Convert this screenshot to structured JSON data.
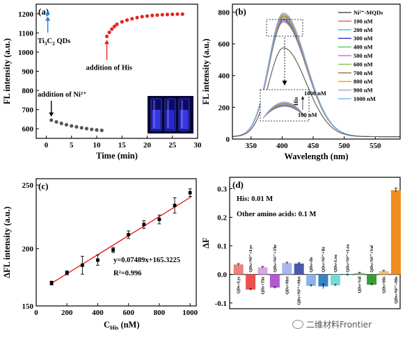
{
  "watermark": "二维材料Frontier",
  "colors": {
    "a_gray": "#555555",
    "a_red": "#e8241e",
    "a_blue": "#1c7fe0",
    "b_main": "#666666",
    "c_red": "#e8241e",
    "c_point": "#000000"
  },
  "chart_data": [
    {
      "id": "a",
      "type": "scatter",
      "panel_label": "(a)",
      "xlabel": "Time (min)",
      "ylabel": "FL intensity (a.u.)",
      "xlim": [
        -2,
        30
      ],
      "ylim": [
        550,
        1250
      ],
      "xticks": [
        0,
        5,
        10,
        15,
        20,
        25,
        30
      ],
      "yticks": [
        600,
        700,
        800,
        900,
        1000,
        1100,
        1200
      ],
      "series": [
        {
          "color": "#1c7fe0",
          "points": [
            [
              0.3,
              1200
            ]
          ]
        },
        {
          "color": "#555555",
          "points": [
            [
              1,
              645
            ],
            [
              2,
              636
            ],
            [
              3,
              628
            ],
            [
              4,
              621
            ],
            [
              5,
              615
            ],
            [
              6,
              610
            ],
            [
              7,
              605
            ],
            [
              8,
              601
            ],
            [
              9,
              597
            ],
            [
              10,
              594
            ],
            [
              11,
              592
            ]
          ]
        },
        {
          "color": "#e8241e",
          "points": [
            [
              12,
              1082
            ],
            [
              12.5,
              1103
            ],
            [
              13,
              1120
            ],
            [
              13.5,
              1134
            ],
            [
              14,
              1145
            ],
            [
              15,
              1158
            ],
            [
              16,
              1167
            ],
            [
              17,
              1174
            ],
            [
              18,
              1180
            ],
            [
              19,
              1185
            ],
            [
              20,
              1188
            ],
            [
              21,
              1191
            ],
            [
              22,
              1193
            ],
            [
              23,
              1195
            ],
            [
              24,
              1196
            ],
            [
              25,
              1197
            ],
            [
              26,
              1198
            ],
            [
              27,
              1198
            ]
          ]
        }
      ],
      "annotations": {
        "qds": "Ti3C2 QDs",
        "his": "addition of His",
        "ni": "addition of Ni²⁺"
      }
    },
    {
      "id": "b",
      "type": "line",
      "panel_label": "(b)",
      "xlabel": "Wavelength (nm)",
      "ylabel": "FL intensity (a.u.)",
      "xlim": [
        320,
        590
      ],
      "ylim": [
        0,
        850
      ],
      "xticks": [
        350,
        400,
        450,
        500,
        550
      ],
      "yticks": [
        0,
        200,
        400,
        600,
        800
      ],
      "peak_wavelength": 402,
      "series": [
        {
          "name": "Ni²⁺-MQDs",
          "color": "#555555",
          "peak": 575
        },
        {
          "name": "100 nM",
          "color": "#ff4a4a",
          "peak": 738
        },
        {
          "name": "200 nM",
          "color": "#2cc3e6",
          "peak": 745
        },
        {
          "name": "300 nM",
          "color": "#2e2ecf",
          "peak": 752
        },
        {
          "name": "400 nM",
          "color": "#5ac65a",
          "peak": 758
        },
        {
          "name": "500 nM",
          "color": "#d66fe2",
          "peak": 764
        },
        {
          "name": "600 nM",
          "color": "#8bc34a",
          "peak": 770
        },
        {
          "name": "700 nM",
          "color": "#a06a4a",
          "peak": 776
        },
        {
          "name": "800 nM",
          "color": "#ff9800",
          "peak": 782
        },
        {
          "name": "900 nM",
          "color": "#9aa6b8",
          "peak": 788
        },
        {
          "name": "1000 nM",
          "color": "#7fb2ff",
          "peak": 795
        }
      ],
      "inset_labels": {
        "his": "His",
        "top": "1000 nM",
        "bottom": "100 nM"
      }
    },
    {
      "id": "c",
      "type": "scatter",
      "panel_label": "(c)",
      "xlabel": "C_His (nM)",
      "xlabel_main": "C",
      "xlabel_sub": "His",
      "xlabel_unit": " (nM)",
      "ylabel": "ΔFL intensity (a.u.)",
      "xlim": [
        0,
        1040
      ],
      "ylim": [
        155,
        255
      ],
      "xticks": [
        0,
        200,
        400,
        600,
        800,
        1000
      ],
      "yticks": [
        150,
        200,
        250
      ],
      "points": [
        {
          "x": 100,
          "y": 173,
          "err": 1.5
        },
        {
          "x": 200,
          "y": 181,
          "err": 1.5
        },
        {
          "x": 300,
          "y": 187,
          "err": 7
        },
        {
          "x": 400,
          "y": 191,
          "err": 4
        },
        {
          "x": 500,
          "y": 199,
          "err": 2
        },
        {
          "x": 600,
          "y": 211,
          "err": 3
        },
        {
          "x": 700,
          "y": 219,
          "err": 3
        },
        {
          "x": 800,
          "y": 223,
          "err": 3.5
        },
        {
          "x": 900,
          "y": 234,
          "err": 6
        },
        {
          "x": 1000,
          "y": 244,
          "err": 3
        }
      ],
      "fit": {
        "slope": 0.07489,
        "intercept": 165.3225
      },
      "equation": "y=0.07489x+165.3225",
      "r2": "R²=0.996"
    },
    {
      "id": "d",
      "type": "bar",
      "panel_label": "(d)",
      "ylabel": "ΔF",
      "ylim": [
        -0.12,
        0.34
      ],
      "yticks": [
        -0.1,
        0.0,
        0.1,
        0.2,
        0.3
      ],
      "legend_text": [
        "His: 0.01 M",
        "Other amino acids: 0.1 M"
      ],
      "categories": [
        "QDs+Lys",
        "QDs+Ni²⁺+Lys",
        "QDs+Thr",
        "QDs+Ni²⁺+Thr",
        "QDs+Met",
        "QDs+Ni²⁺+Met",
        "QDs+Ile",
        "QDs+Ni²⁺+Ile",
        "QDs+Leu",
        "QDs+Ni²⁺+Leu",
        "QDs+Val",
        "QDs+Ni²⁺+Val",
        "QDs+His",
        "QDs+Ni²⁺+His"
      ],
      "values": [
        0.035,
        -0.053,
        0.025,
        -0.046,
        0.04,
        0.038,
        -0.04,
        -0.042,
        -0.038,
        -0.002,
        0.005,
        -0.036,
        0.012,
        0.295
      ],
      "errors": [
        0.003,
        0.003,
        0.003,
        0.003,
        0.003,
        0.003,
        0.003,
        0.008,
        0.003,
        0.003,
        0.002,
        0.003,
        0.002,
        0.007
      ],
      "bar_colors": [
        "#ee8080",
        "#ee5050",
        "#d7a6e6",
        "#b35ad1",
        "#a7b7ef",
        "#4a5ab0",
        "#8cb4e8",
        "#3a80c6",
        "#78d8d8",
        "#44b8c2",
        "#8ad07e",
        "#3a9a36",
        "#f6c176",
        "#f08e1e"
      ]
    }
  ]
}
